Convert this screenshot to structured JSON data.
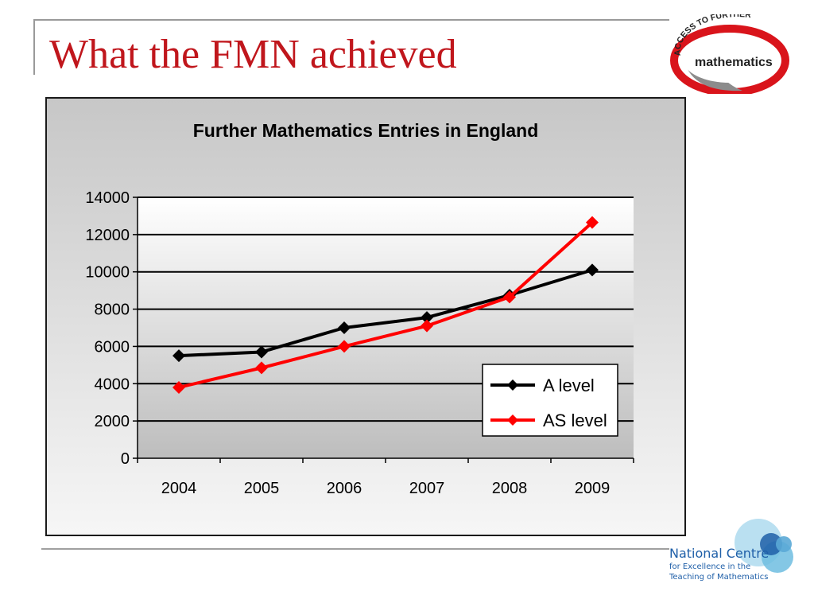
{
  "slide": {
    "title": "What the FMN achieved"
  },
  "logo_top": {
    "arc_text": "ACCESS TO FURTHER",
    "word": "mathematics",
    "colors": {
      "red": "#d9141b",
      "grey": "#8c8c8c",
      "dark": "#222222"
    }
  },
  "logo_bottom": {
    "name": "National Centre",
    "line1": "for Excellence in the",
    "line2": "Teaching of Mathematics",
    "colors": {
      "blue": "#1f5fa8",
      "light": "#a9d8ee",
      "mid": "#6fbde0"
    }
  },
  "chart_data": {
    "type": "line",
    "title": "Further Mathematics Entries in England",
    "categories": [
      "2004",
      "2005",
      "2006",
      "2007",
      "2008",
      "2009"
    ],
    "series": [
      {
        "name": "A level",
        "values": [
          5500,
          5700,
          7000,
          7550,
          8750,
          10100
        ],
        "color": "#000000",
        "marker": "diamond"
      },
      {
        "name": "AS level",
        "values": [
          3800,
          4850,
          6000,
          7100,
          8650,
          12650
        ],
        "color": "#ff0000",
        "marker": "diamond"
      }
    ],
    "ylim": [
      0,
      14000
    ],
    "yticks": [
      0,
      2000,
      4000,
      6000,
      8000,
      10000,
      12000,
      14000
    ],
    "grid": true,
    "legend": "bottom-right"
  }
}
